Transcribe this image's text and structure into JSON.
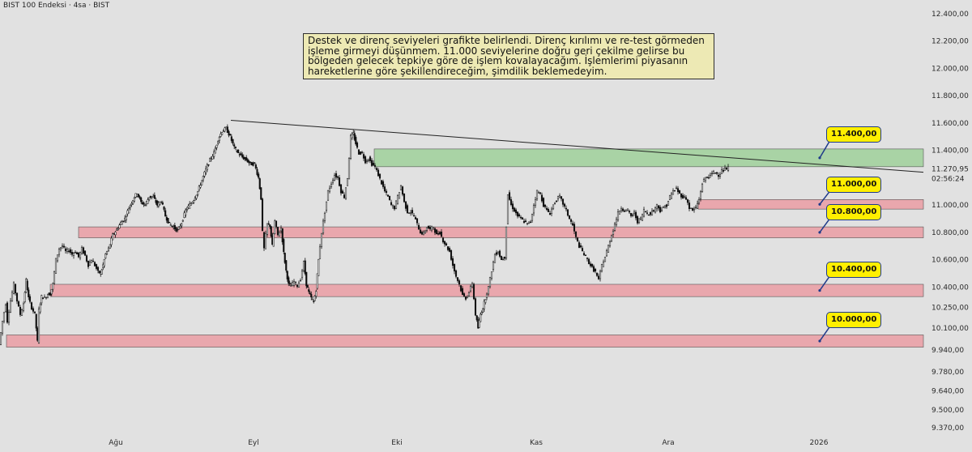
{
  "header": {
    "symbol": "BIST 100 Endeksi · 4sa · BIST"
  },
  "annotation": {
    "text": "Destek ve direnç seviyeleri grafikte belirlendi. Direnç kırılımı ve re-test görmeden işleme girmeyi düşünmem. 11.000 seviyelerine doğru geri çekilme gelirse bu bölgeden gelecek tepkiye göre de işlem kovalayacağım. İşlemlerimi piyasanın hareketlerine göre şekillendireceğim, şimdilik beklemedeyim."
  },
  "chart_data": {
    "type": "candlestick",
    "symbol": "BIST 100 Endeksi",
    "interval": "4sa",
    "exchange": "BIST",
    "x_tick_labels": [
      "Ağu",
      "Eyl",
      "Eki",
      "Kas",
      "Ara",
      "2026"
    ],
    "y_tick_labels": [
      "12.400,00",
      "12.200,00",
      "12.000,00",
      "11.800,00",
      "11.600,00",
      "11.400,00",
      "11.270,95",
      "11.000,00",
      "10.800,00",
      "10.600,00",
      "10.400,00",
      "10.250,00",
      "10.100,00",
      "9.940,00",
      "9.780,00",
      "9.640,00",
      "9.500,00",
      "9.370,00"
    ],
    "y_ticks": [
      12400,
      12200,
      12000,
      11800,
      11600,
      11400,
      11000,
      10800,
      10600,
      10400,
      10250,
      10100,
      9940,
      9780,
      9640,
      9500,
      9370
    ],
    "last_price": {
      "value": 11270.95,
      "label": "11.270,95",
      "countdown": "02:56:24",
      "color": "#089981"
    },
    "ylim": [
      9300,
      12470
    ],
    "price_path": [
      [
        0,
        9980
      ],
      [
        4,
        10150
      ],
      [
        8,
        10280
      ],
      [
        10,
        10150
      ],
      [
        14,
        10300
      ],
      [
        18,
        10420
      ],
      [
        22,
        10300
      ],
      [
        26,
        10200
      ],
      [
        30,
        10280
      ],
      [
        33,
        10450
      ],
      [
        36,
        10320
      ],
      [
        40,
        10250
      ],
      [
        44,
        10200
      ],
      [
        47,
        10000
      ],
      [
        49,
        10230
      ],
      [
        52,
        10330
      ],
      [
        56,
        10320
      ],
      [
        60,
        10350
      ],
      [
        63,
        10350
      ],
      [
        66,
        10420
      ],
      [
        70,
        10600
      ],
      [
        74,
        10680
      ],
      [
        78,
        10700
      ],
      [
        82,
        10660
      ],
      [
        86,
        10670
      ],
      [
        90,
        10640
      ],
      [
        94,
        10660
      ],
      [
        98,
        10620
      ],
      [
        102,
        10680
      ],
      [
        106,
        10630
      ],
      [
        110,
        10560
      ],
      [
        114,
        10600
      ],
      [
        118,
        10560
      ],
      [
        122,
        10510
      ],
      [
        125,
        10500
      ],
      [
        128,
        10560
      ],
      [
        131,
        10640
      ],
      [
        135,
        10680
      ],
      [
        140,
        10780
      ],
      [
        145,
        10820
      ],
      [
        150,
        10870
      ],
      [
        155,
        10900
      ],
      [
        160,
        10980
      ],
      [
        165,
        11040
      ],
      [
        170,
        11090
      ],
      [
        175,
        11020
      ],
      [
        180,
        11000
      ],
      [
        185,
        11060
      ],
      [
        190,
        11060
      ],
      [
        195,
        11000
      ],
      [
        200,
        11030
      ],
      [
        205,
        10920
      ],
      [
        210,
        10860
      ],
      [
        215,
        10840
      ],
      [
        220,
        10810
      ],
      [
        225,
        10870
      ],
      [
        230,
        10960
      ],
      [
        235,
        11000
      ],
      [
        240,
        11040
      ],
      [
        245,
        11100
      ],
      [
        250,
        11180
      ],
      [
        255,
        11260
      ],
      [
        260,
        11330
      ],
      [
        265,
        11380
      ],
      [
        270,
        11480
      ],
      [
        275,
        11540
      ],
      [
        280,
        11560
      ],
      [
        285,
        11500
      ],
      [
        290,
        11420
      ],
      [
        295,
        11380
      ],
      [
        300,
        11350
      ],
      [
        305,
        11330
      ],
      [
        310,
        11300
      ],
      [
        315,
        11300
      ],
      [
        320,
        11200
      ],
      [
        323,
        11050
      ],
      [
        325,
        10800
      ],
      [
        327,
        10680
      ],
      [
        329,
        10780
      ],
      [
        331,
        10860
      ],
      [
        334,
        10850
      ],
      [
        337,
        10700
      ],
      [
        340,
        10880
      ],
      [
        344,
        10780
      ],
      [
        348,
        10830
      ],
      [
        351,
        10650
      ],
      [
        354,
        10520
      ],
      [
        357,
        10420
      ],
      [
        360,
        10410
      ],
      [
        364,
        10440
      ],
      [
        368,
        10410
      ],
      [
        372,
        10460
      ],
      [
        376,
        10580
      ],
      [
        379,
        10420
      ],
      [
        382,
        10360
      ],
      [
        385,
        10320
      ],
      [
        388,
        10290
      ],
      [
        391,
        10380
      ],
      [
        394,
        10600
      ],
      [
        398,
        10800
      ],
      [
        402,
        10950
      ],
      [
        406,
        11100
      ],
      [
        410,
        11160
      ],
      [
        414,
        11220
      ],
      [
        418,
        11200
      ],
      [
        422,
        11100
      ],
      [
        426,
        11060
      ],
      [
        430,
        11200
      ],
      [
        434,
        11500
      ],
      [
        437,
        11520
      ],
      [
        440,
        11450
      ],
      [
        444,
        11380
      ],
      [
        448,
        11380
      ],
      [
        452,
        11320
      ],
      [
        456,
        11340
      ],
      [
        460,
        11300
      ],
      [
        464,
        11280
      ],
      [
        468,
        11220
      ],
      [
        472,
        11160
      ],
      [
        476,
        11100
      ],
      [
        480,
        11060
      ],
      [
        484,
        11000
      ],
      [
        488,
        10980
      ],
      [
        492,
        11060
      ],
      [
        496,
        11140
      ],
      [
        500,
        11020
      ],
      [
        504,
        10950
      ],
      [
        508,
        10950
      ],
      [
        512,
        10920
      ],
      [
        516,
        10860
      ],
      [
        520,
        10800
      ],
      [
        524,
        10790
      ],
      [
        528,
        10840
      ],
      [
        532,
        10820
      ],
      [
        536,
        10840
      ],
      [
        540,
        10780
      ],
      [
        544,
        10800
      ],
      [
        548,
        10740
      ],
      [
        552,
        10700
      ],
      [
        556,
        10660
      ],
      [
        560,
        10560
      ],
      [
        564,
        10480
      ],
      [
        568,
        10420
      ],
      [
        572,
        10340
      ],
      [
        576,
        10320
      ],
      [
        580,
        10360
      ],
      [
        584,
        10430
      ],
      [
        588,
        10200
      ],
      [
        591,
        10100
      ],
      [
        594,
        10200
      ],
      [
        597,
        10250
      ],
      [
        600,
        10320
      ],
      [
        604,
        10400
      ],
      [
        608,
        10520
      ],
      [
        612,
        10640
      ],
      [
        616,
        10660
      ],
      [
        620,
        10600
      ],
      [
        624,
        10620
      ],
      [
        628,
        11080
      ],
      [
        632,
        11000
      ],
      [
        636,
        10960
      ],
      [
        640,
        10920
      ],
      [
        644,
        10900
      ],
      [
        648,
        10880
      ],
      [
        652,
        10860
      ],
      [
        656,
        10880
      ],
      [
        660,
        11000
      ],
      [
        664,
        11100
      ],
      [
        668,
        11080
      ],
      [
        672,
        11000
      ],
      [
        676,
        10960
      ],
      [
        680,
        10940
      ],
      [
        684,
        11000
      ],
      [
        688,
        11040
      ],
      [
        692,
        11060
      ],
      [
        696,
        11010
      ],
      [
        700,
        10960
      ],
      [
        704,
        10900
      ],
      [
        708,
        10850
      ],
      [
        712,
        10760
      ],
      [
        716,
        10700
      ],
      [
        720,
        10660
      ],
      [
        724,
        10620
      ],
      [
        728,
        10580
      ],
      [
        732,
        10540
      ],
      [
        736,
        10510
      ],
      [
        740,
        10450
      ],
      [
        744,
        10560
      ],
      [
        748,
        10620
      ],
      [
        752,
        10700
      ],
      [
        756,
        10780
      ],
      [
        760,
        10860
      ],
      [
        764,
        10940
      ],
      [
        768,
        10980
      ],
      [
        772,
        10960
      ],
      [
        776,
        10960
      ],
      [
        780,
        10920
      ],
      [
        784,
        10940
      ],
      [
        788,
        10880
      ],
      [
        792,
        10900
      ],
      [
        796,
        10960
      ],
      [
        800,
        10940
      ],
      [
        804,
        10940
      ],
      [
        808,
        10960
      ],
      [
        812,
        11000
      ],
      [
        816,
        10960
      ],
      [
        820,
        10980
      ],
      [
        824,
        11000
      ],
      [
        828,
        11060
      ],
      [
        832,
        11100
      ],
      [
        836,
        11120
      ],
      [
        840,
        11080
      ],
      [
        844,
        11060
      ],
      [
        848,
        11050
      ],
      [
        852,
        10980
      ],
      [
        856,
        10960
      ],
      [
        860,
        10980
      ],
      [
        864,
        11040
      ],
      [
        868,
        11160
      ],
      [
        872,
        11200
      ],
      [
        876,
        11210
      ],
      [
        880,
        11230
      ],
      [
        884,
        11240
      ],
      [
        888,
        11220
      ],
      [
        892,
        11250
      ],
      [
        896,
        11260
      ],
      [
        900,
        11270
      ]
    ],
    "trendline": [
      [
        285,
        11620
      ],
      [
        1140,
        11240
      ]
    ],
    "zones": [
      {
        "label": "11.400,00",
        "y1": 11280,
        "y2": 11410,
        "x_start": 462,
        "color": "#a9d3a5"
      },
      {
        "label": "11.000,00",
        "y1": 10970,
        "y2": 11040,
        "x_start": 862,
        "color": "#e9a7ad"
      },
      {
        "label": "10.800,00",
        "y1": 10760,
        "y2": 10840,
        "x_start": 97,
        "color": "#e9a7ad"
      },
      {
        "label": "10.400,00",
        "y1": 10330,
        "y2": 10420,
        "x_start": 62,
        "color": "#e9a7ad"
      },
      {
        "label": "10.000,00",
        "y1": 9960,
        "y2": 10050,
        "x_start": 8,
        "color": "#e9a7ad"
      }
    ],
    "candle_color_up": "#111111",
    "candle_color_down": "#111111"
  }
}
